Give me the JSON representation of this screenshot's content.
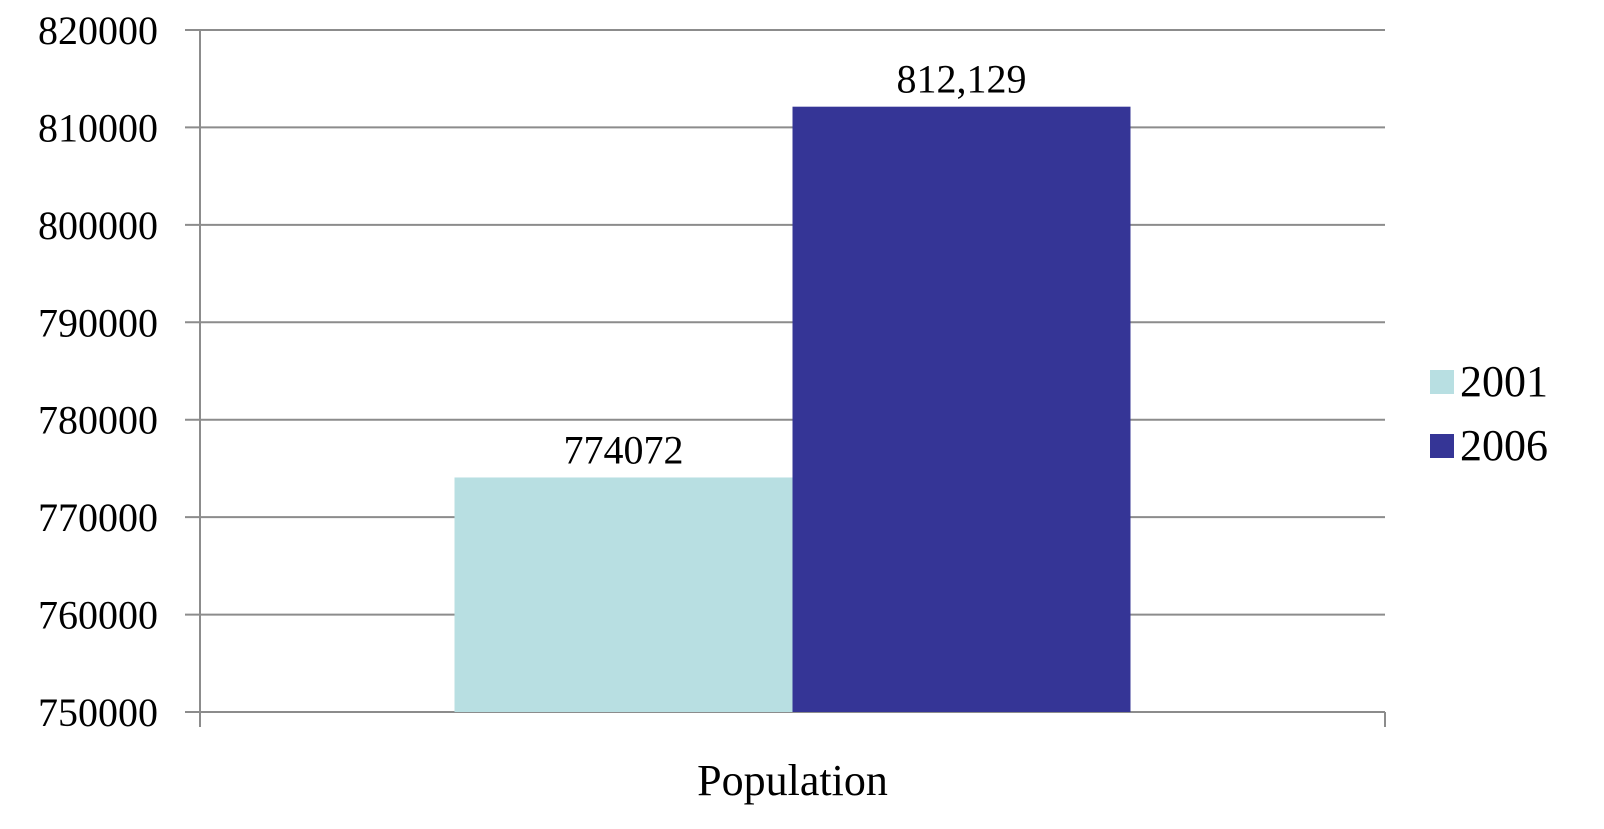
{
  "chart_data": {
    "type": "bar",
    "categories": [
      "Population"
    ],
    "series": [
      {
        "name": "2001",
        "values": [
          774072
        ],
        "label": "774072",
        "color": "#b8dfe2"
      },
      {
        "name": "2006",
        "values": [
          812129
        ],
        "label": "812,129",
        "color": "#353596"
      }
    ],
    "yticks": [
      "750000",
      "760000",
      "770000",
      "780000",
      "790000",
      "800000",
      "810000",
      "820000"
    ],
    "ylim": [
      750000,
      820000
    ],
    "grid": true,
    "legend_position": "right"
  }
}
